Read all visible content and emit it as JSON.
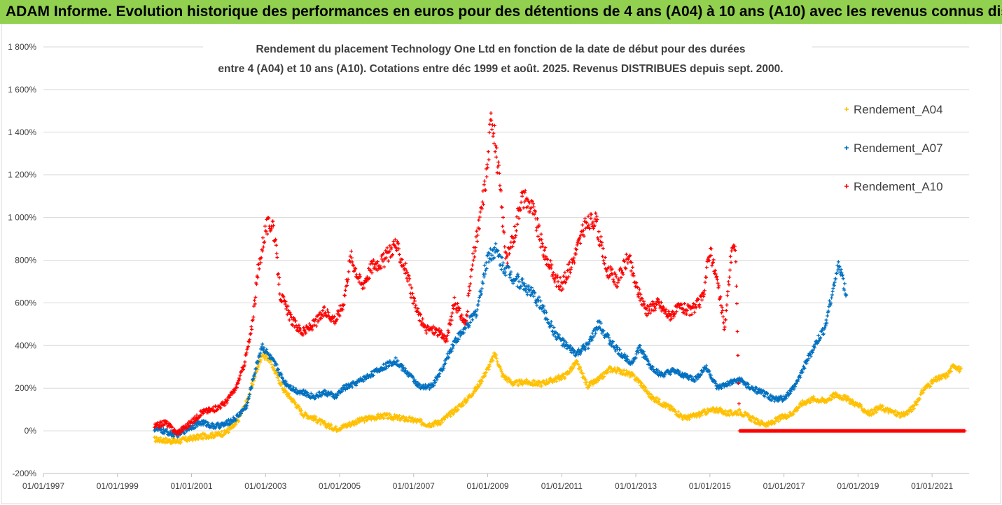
{
  "header": {
    "banner": "ADAM Informe. Evolution historique des performances en euros pour des détentions de 4 ans (A04) à 10 ans (A10) avec les revenus connus distribués"
  },
  "chart_data": {
    "type": "scatter",
    "title_lines": [
      "Rendement du placement Technology One Ltd en fonction de la date de début pour des durées",
      "entre 4 (A04) et 10 ans (A10). Cotations entre déc 1999 et août. 2025. Revenus DISTRIBUES depuis sept. 2000."
    ],
    "x_ticks": [
      "01/01/1997",
      "01/01/1999",
      "01/01/2001",
      "01/01/2003",
      "01/01/2005",
      "01/01/2007",
      "01/01/2009",
      "01/01/2011",
      "01/01/2013",
      "01/01/2015",
      "01/01/2017",
      "01/01/2019",
      "01/01/2021"
    ],
    "xlim": [
      1997.0,
      2022.0
    ],
    "y_ticks": [
      "-200%",
      "0%",
      "200%",
      "400%",
      "600%",
      "800%",
      "1 000%",
      "1 200%",
      "1 400%",
      "1 600%",
      "1 800%"
    ],
    "ylim": [
      -200,
      1800
    ],
    "grid": "horizontal",
    "legend_position": "right",
    "series": [
      {
        "name": "Rendement_A04",
        "color": "#ffc000",
        "points": [
          [
            2000.0,
            -40
          ],
          [
            2000.3,
            -45
          ],
          [
            2000.6,
            -50
          ],
          [
            2001.0,
            -35
          ],
          [
            2001.3,
            -25
          ],
          [
            2001.6,
            -20
          ],
          [
            2001.9,
            -10
          ],
          [
            2002.2,
            30
          ],
          [
            2002.5,
            140
          ],
          [
            2002.7,
            250
          ],
          [
            2002.9,
            360
          ],
          [
            2003.1,
            340
          ],
          [
            2003.3,
            260
          ],
          [
            2003.5,
            190
          ],
          [
            2003.8,
            130
          ],
          [
            2004.0,
            80
          ],
          [
            2004.3,
            60
          ],
          [
            2004.6,
            30
          ],
          [
            2004.9,
            10
          ],
          [
            2005.1,
            20
          ],
          [
            2005.4,
            40
          ],
          [
            2005.8,
            60
          ],
          [
            2006.2,
            70
          ],
          [
            2006.6,
            60
          ],
          [
            2007.0,
            50
          ],
          [
            2007.4,
            30
          ],
          [
            2007.7,
            40
          ],
          [
            2008.0,
            80
          ],
          [
            2008.4,
            140
          ],
          [
            2008.7,
            200
          ],
          [
            2009.0,
            290
          ],
          [
            2009.2,
            360
          ],
          [
            2009.4,
            260
          ],
          [
            2009.7,
            220
          ],
          [
            2010.0,
            230
          ],
          [
            2010.4,
            220
          ],
          [
            2010.8,
            240
          ],
          [
            2011.1,
            260
          ],
          [
            2011.4,
            320
          ],
          [
            2011.7,
            210
          ],
          [
            2012.0,
            240
          ],
          [
            2012.3,
            290
          ],
          [
            2012.6,
            280
          ],
          [
            2012.9,
            260
          ],
          [
            2013.1,
            230
          ],
          [
            2013.4,
            160
          ],
          [
            2013.7,
            130
          ],
          [
            2014.0,
            100
          ],
          [
            2014.3,
            60
          ],
          [
            2014.6,
            70
          ],
          [
            2014.9,
            90
          ],
          [
            2015.2,
            100
          ],
          [
            2015.5,
            80
          ],
          [
            2015.8,
            90
          ],
          [
            2016.0,
            70
          ],
          [
            2016.3,
            40
          ],
          [
            2016.6,
            30
          ],
          [
            2016.9,
            60
          ],
          [
            2017.2,
            80
          ],
          [
            2017.5,
            130
          ],
          [
            2017.8,
            150
          ],
          [
            2018.1,
            140
          ],
          [
            2018.4,
            170
          ],
          [
            2018.7,
            150
          ],
          [
            2019.0,
            120
          ],
          [
            2019.3,
            80
          ],
          [
            2019.6,
            110
          ],
          [
            2019.9,
            90
          ],
          [
            2020.2,
            70
          ],
          [
            2020.5,
            110
          ],
          [
            2020.8,
            200
          ],
          [
            2021.1,
            240
          ],
          [
            2021.4,
            260
          ],
          [
            2021.6,
            310
          ],
          [
            2021.8,
            280
          ]
        ]
      },
      {
        "name": "Rendement_A07",
        "color": "#0070c0",
        "points": [
          [
            2000.0,
            10
          ],
          [
            2000.3,
            -5
          ],
          [
            2000.6,
            -20
          ],
          [
            2001.0,
            20
          ],
          [
            2001.3,
            40
          ],
          [
            2001.6,
            20
          ],
          [
            2001.9,
            30
          ],
          [
            2002.2,
            60
          ],
          [
            2002.5,
            120
          ],
          [
            2002.7,
            270
          ],
          [
            2002.9,
            400
          ],
          [
            2003.1,
            350
          ],
          [
            2003.3,
            300
          ],
          [
            2003.5,
            230
          ],
          [
            2003.8,
            190
          ],
          [
            2004.0,
            180
          ],
          [
            2004.3,
            160
          ],
          [
            2004.6,
            180
          ],
          [
            2004.9,
            160
          ],
          [
            2005.1,
            200
          ],
          [
            2005.4,
            220
          ],
          [
            2005.8,
            260
          ],
          [
            2006.2,
            300
          ],
          [
            2006.5,
            330
          ],
          [
            2006.9,
            260
          ],
          [
            2007.2,
            200
          ],
          [
            2007.5,
            210
          ],
          [
            2007.8,
            300
          ],
          [
            2008.1,
            420
          ],
          [
            2008.4,
            480
          ],
          [
            2008.7,
            560
          ],
          [
            2009.0,
            820
          ],
          [
            2009.2,
            850
          ],
          [
            2009.4,
            780
          ],
          [
            2009.7,
            720
          ],
          [
            2010.0,
            680
          ],
          [
            2010.4,
            600
          ],
          [
            2010.8,
            460
          ],
          [
            2011.1,
            400
          ],
          [
            2011.4,
            360
          ],
          [
            2011.7,
            400
          ],
          [
            2012.0,
            500
          ],
          [
            2012.3,
            420
          ],
          [
            2012.6,
            360
          ],
          [
            2012.9,
            320
          ],
          [
            2013.1,
            390
          ],
          [
            2013.4,
            300
          ],
          [
            2013.7,
            260
          ],
          [
            2014.0,
            280
          ],
          [
            2014.3,
            260
          ],
          [
            2014.6,
            240
          ],
          [
            2014.9,
            300
          ],
          [
            2015.2,
            200
          ],
          [
            2015.5,
            220
          ],
          [
            2015.8,
            240
          ],
          [
            2016.1,
            200
          ],
          [
            2016.4,
            180
          ],
          [
            2016.7,
            150
          ],
          [
            2017.0,
            150
          ],
          [
            2017.3,
            210
          ],
          [
            2017.6,
            320
          ],
          [
            2017.9,
            420
          ],
          [
            2018.1,
            480
          ],
          [
            2018.3,
            650
          ],
          [
            2018.5,
            780
          ],
          [
            2018.7,
            620
          ]
        ]
      },
      {
        "name": "Rendement_A10",
        "color": "#ff0000",
        "points": [
          [
            2000.0,
            20
          ],
          [
            2000.3,
            40
          ],
          [
            2000.6,
            -10
          ],
          [
            2001.0,
            40
          ],
          [
            2001.3,
            90
          ],
          [
            2001.6,
            100
          ],
          [
            2001.9,
            130
          ],
          [
            2002.2,
            200
          ],
          [
            2002.4,
            300
          ],
          [
            2002.6,
            450
          ],
          [
            2002.8,
            750
          ],
          [
            2003.0,
            950
          ],
          [
            2003.2,
            980
          ],
          [
            2003.4,
            640
          ],
          [
            2003.7,
            520
          ],
          [
            2004.0,
            460
          ],
          [
            2004.3,
            500
          ],
          [
            2004.6,
            560
          ],
          [
            2004.9,
            520
          ],
          [
            2005.1,
            600
          ],
          [
            2005.3,
            820
          ],
          [
            2005.6,
            680
          ],
          [
            2005.9,
            780
          ],
          [
            2006.2,
            800
          ],
          [
            2006.5,
            880
          ],
          [
            2006.8,
            750
          ],
          [
            2007.0,
            600
          ],
          [
            2007.3,
            480
          ],
          [
            2007.6,
            470
          ],
          [
            2007.9,
            430
          ],
          [
            2008.1,
            600
          ],
          [
            2008.4,
            500
          ],
          [
            2008.6,
            800
          ],
          [
            2008.8,
            1000
          ],
          [
            2009.0,
            1250
          ],
          [
            2009.1,
            1500
          ],
          [
            2009.3,
            1200
          ],
          [
            2009.5,
            800
          ],
          [
            2009.7,
            900
          ],
          [
            2009.9,
            1100
          ],
          [
            2010.2,
            1050
          ],
          [
            2010.5,
            850
          ],
          [
            2010.8,
            720
          ],
          [
            2011.0,
            680
          ],
          [
            2011.3,
            800
          ],
          [
            2011.6,
            950
          ],
          [
            2011.9,
            1000
          ],
          [
            2012.2,
            760
          ],
          [
            2012.5,
            700
          ],
          [
            2012.8,
            820
          ],
          [
            2013.0,
            680
          ],
          [
            2013.3,
            560
          ],
          [
            2013.6,
            600
          ],
          [
            2013.9,
            540
          ],
          [
            2014.2,
            580
          ],
          [
            2014.5,
            560
          ],
          [
            2014.8,
            620
          ],
          [
            2015.0,
            850
          ],
          [
            2015.2,
            700
          ],
          [
            2015.4,
            480
          ],
          [
            2015.6,
            880
          ],
          [
            2015.7,
            820
          ],
          [
            2015.8,
            0
          ],
          [
            2016.5,
            0
          ],
          [
            2017.5,
            0
          ],
          [
            2018.5,
            0
          ],
          [
            2019.5,
            0
          ],
          [
            2020.5,
            0
          ],
          [
            2021.5,
            0
          ],
          [
            2021.9,
            0
          ]
        ]
      }
    ]
  }
}
